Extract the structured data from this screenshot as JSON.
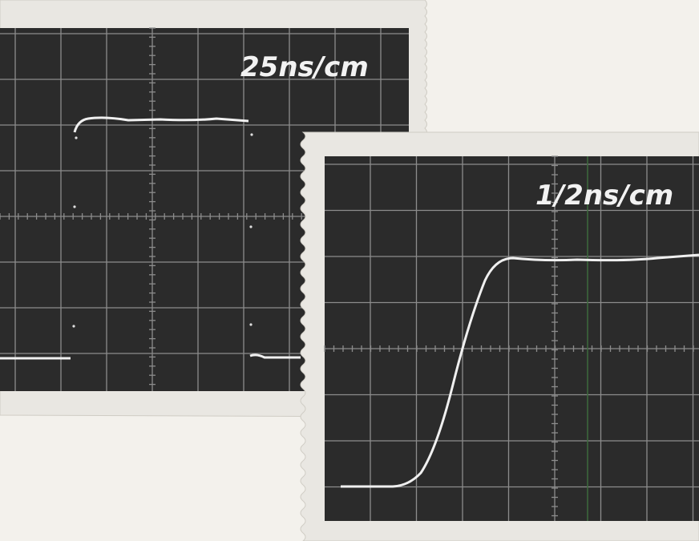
{
  "panels": [
    {
      "label": "25ns/cm"
    },
    {
      "label": "1/2ns/cm"
    }
  ]
}
